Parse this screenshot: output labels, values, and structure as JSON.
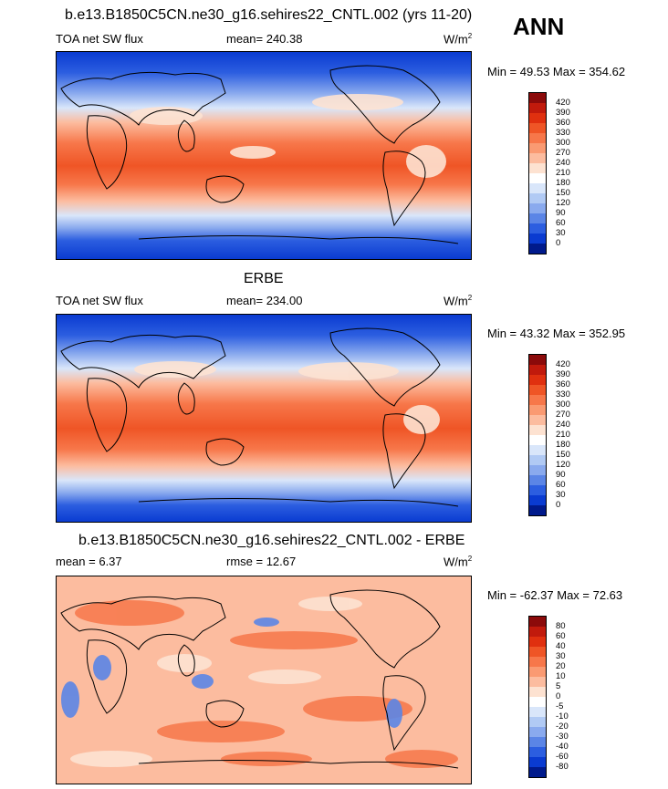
{
  "season": "ANN",
  "panels": [
    {
      "title": "b.e13.B1850C5CN.ne30_g16.sehires22_CNTL.002 (yrs 11-20)",
      "left_label": "TOA net SW flux",
      "center_label": "mean= 240.38",
      "units": "W/m",
      "units_sup": "2",
      "minmax": "Min =  49.53 Max = 354.62",
      "kind": "abs"
    },
    {
      "title": "ERBE",
      "left_label": "TOA net SW flux",
      "center_label": "mean= 234.00",
      "units": "W/m",
      "units_sup": "2",
      "minmax": "Min =  43.32 Max = 352.95",
      "kind": "abs"
    },
    {
      "title": "b.e13.B1850C5CN.ne30_g16.sehires22_CNTL.002 - ERBE",
      "left_label": "mean =   6.37",
      "center_label": "rmse =  12.67",
      "units": "W/m",
      "units_sup": "2",
      "minmax": "Min = -62.37 Max =  72.63",
      "kind": "diff"
    }
  ],
  "colorbars": {
    "abs": {
      "ticks": [
        "420",
        "390",
        "360",
        "330",
        "300",
        "270",
        "240",
        "210",
        "180",
        "150",
        "120",
        "90",
        "60",
        "30",
        "0"
      ],
      "colors": [
        "#8b0a0a",
        "#c11a0c",
        "#e0300f",
        "#ef5526",
        "#f7774a",
        "#fa9a72",
        "#fcbc9f",
        "#fde2d1",
        "#ffffff",
        "#d9e6fa",
        "#b1caf4",
        "#8aaaee",
        "#5b85e6",
        "#2c5ee0",
        "#0a3bd1",
        "#001a8c"
      ]
    },
    "diff": {
      "ticks": [
        "80",
        "60",
        "40",
        "30",
        "20",
        "10",
        "5",
        "0",
        "-5",
        "-10",
        "-20",
        "-30",
        "-40",
        "-60",
        "-80"
      ],
      "colors": [
        "#8b0a0a",
        "#c11a0c",
        "#e0300f",
        "#ef5526",
        "#f7774a",
        "#fa9a72",
        "#fcbc9f",
        "#fde2d1",
        "#ffffff",
        "#d9e6fa",
        "#b1caf4",
        "#8aaaee",
        "#5b85e6",
        "#2c5ee0",
        "#0a3bd1",
        "#001a8c"
      ]
    }
  }
}
